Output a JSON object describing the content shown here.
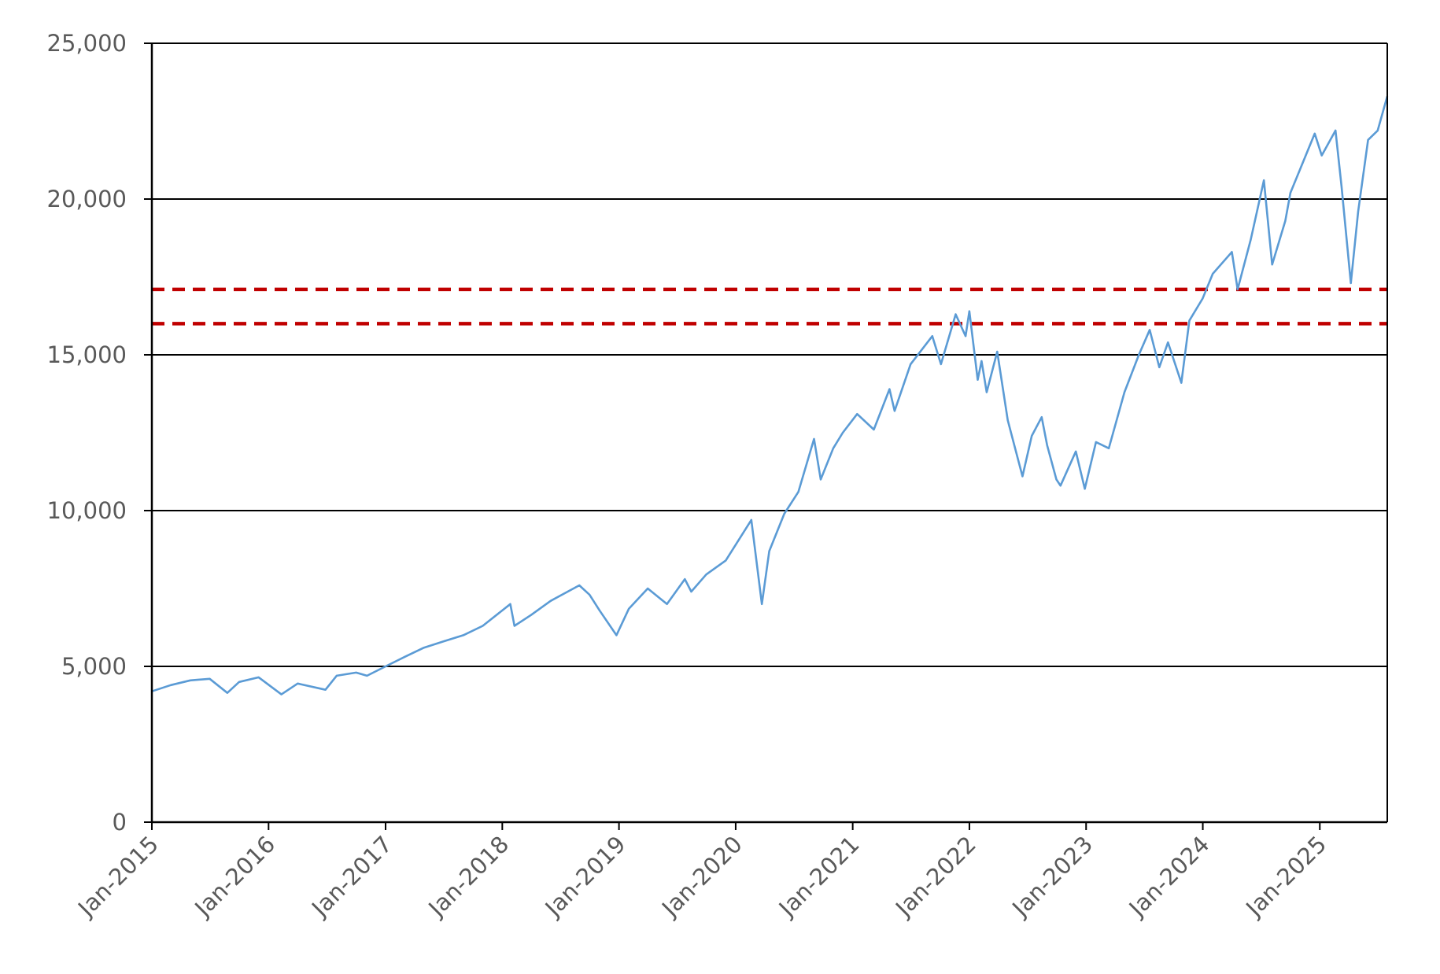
{
  "chart_data": {
    "type": "line",
    "title": "",
    "xlabel": "",
    "ylabel": "",
    "ylim": [
      0,
      25000
    ],
    "xlim": [
      "2015-01-01",
      "2025-07-31"
    ],
    "y_ticks": [
      0,
      5000,
      10000,
      15000,
      20000,
      25000
    ],
    "y_tick_labels": [
      "0",
      "5,000",
      "10,000",
      "15,000",
      "20,000",
      "25,000"
    ],
    "x_ticks": [
      "2015-01-01",
      "2016-01-01",
      "2017-01-01",
      "2018-01-01",
      "2019-01-01",
      "2020-01-01",
      "2021-01-01",
      "2022-01-01",
      "2023-01-01",
      "2024-01-01",
      "2025-01-01"
    ],
    "x_tick_labels": [
      "Jan-2015",
      "Jan-2016",
      "Jan-2017",
      "Jan-2018",
      "Jan-2019",
      "Jan-2020",
      "Jan-2021",
      "Jan-2022",
      "Jan-2023",
      "Jan-2024",
      "Jan-2025"
    ],
    "grid": "horizontal",
    "legend": "none",
    "colors": {
      "series": "#5B9BD5",
      "reference": "#C00000",
      "grid": "#000000",
      "axis": "#000000",
      "tick_text": "#595959"
    },
    "series": [
      {
        "x": [
          "2015-01-01",
          "2015-03-01",
          "2015-05-01",
          "2015-07-01",
          "2015-08-25",
          "2015-10-01",
          "2015-12-01",
          "2016-02-10",
          "2016-04-01",
          "2016-06-27",
          "2016-08-01",
          "2016-10-01",
          "2016-11-04",
          "2017-01-01",
          "2017-03-01",
          "2017-05-01",
          "2017-07-01",
          "2017-09-01",
          "2017-11-01",
          "2018-01-26",
          "2018-02-08",
          "2018-04-01",
          "2018-06-01",
          "2018-08-30",
          "2018-10-01",
          "2018-11-01",
          "2018-12-24",
          "2019-02-01",
          "2019-04-01",
          "2019-05-31",
          "2019-07-26",
          "2019-08-15",
          "2019-10-01",
          "2019-12-01",
          "2020-02-19",
          "2020-03-23",
          "2020-04-15",
          "2020-06-01",
          "2020-07-15",
          "2020-09-02",
          "2020-09-23",
          "2020-11-01",
          "2020-12-01",
          "2021-01-15",
          "2021-03-08",
          "2021-04-26",
          "2021-05-12",
          "2021-07-01",
          "2021-09-07",
          "2021-10-04",
          "2021-11-19",
          "2021-12-20",
          "2022-01-01",
          "2022-01-27",
          "2022-02-08",
          "2022-02-24",
          "2022-03-29",
          "2022-05-01",
          "2022-06-16",
          "2022-07-15",
          "2022-08-15",
          "2022-09-01",
          "2022-09-30",
          "2022-10-13",
          "2022-11-30",
          "2022-12-28",
          "2023-02-01",
          "2023-03-13",
          "2023-05-01",
          "2023-06-15",
          "2023-07-19",
          "2023-08-18",
          "2023-09-14",
          "2023-10-26",
          "2023-11-20",
          "2023-12-31",
          "2024-02-01",
          "2024-04-01",
          "2024-04-19",
          "2024-05-30",
          "2024-07-10",
          "2024-08-05",
          "2024-09-15",
          "2024-10-01",
          "2024-12-16",
          "2025-01-07",
          "2025-02-19",
          "2025-03-10",
          "2025-04-08",
          "2025-05-01",
          "2025-06-01",
          "2025-07-01",
          "2025-07-31"
        ],
        "values": [
          4200,
          4400,
          4550,
          4600,
          4150,
          4500,
          4650,
          4100,
          4450,
          4250,
          4700,
          4800,
          4700,
          5000,
          5300,
          5600,
          5800,
          6000,
          6300,
          7000,
          6300,
          6650,
          7100,
          7600,
          7300,
          6800,
          6000,
          6850,
          7500,
          7000,
          7800,
          7400,
          7950,
          8400,
          9700,
          7000,
          8700,
          9900,
          10600,
          12300,
          11000,
          12000,
          12500,
          13100,
          12600,
          13900,
          13200,
          14700,
          15600,
          14700,
          16300,
          15600,
          16400,
          14200,
          14800,
          13800,
          15100,
          12900,
          11100,
          12400,
          13000,
          12100,
          11000,
          10800,
          11900,
          10700,
          12200,
          12000,
          13800,
          15000,
          15800,
          14600,
          15400,
          14100,
          16100,
          16800,
          17600,
          18300,
          17100,
          18700,
          20600,
          17900,
          19300,
          20200,
          22100,
          21400,
          22200,
          20400,
          17300,
          19600,
          21900,
          22200,
          23300
        ]
      }
    ],
    "reference_lines": [
      17100,
      16000
    ]
  }
}
